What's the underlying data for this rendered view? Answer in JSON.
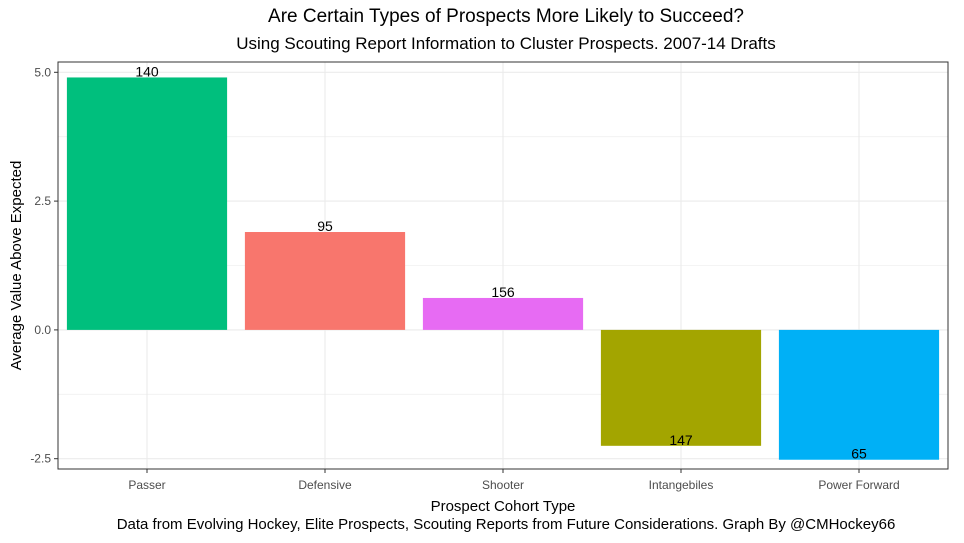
{
  "chart_data": {
    "type": "bar",
    "title": "Are Certain Types of Prospects More Likely to Succeed?",
    "subtitle": "Using Scouting Report Information to Cluster Prospects. 2007-14 Drafts",
    "caption": "Data from Evolving Hockey, Elite Prospects, Scouting Reports from Future Considerations. Graph By @CMHockey66",
    "xlabel": "Prospect Cohort Type",
    "ylabel": "Average Value Above Expected",
    "categories": [
      "Passer",
      "Defensive",
      "Shooter",
      "Intangebiles",
      "Power Forward"
    ],
    "values": [
      4.9,
      1.9,
      0.62,
      -2.25,
      -2.52
    ],
    "bar_labels": [
      "140",
      "95",
      "156",
      "147",
      "65"
    ],
    "colors": [
      "#00BF7D",
      "#F8766D",
      "#E76BF3",
      "#A3A500",
      "#00B0F6"
    ],
    "ylim": [
      -2.7,
      5.2
    ],
    "yticks": [
      -2.5,
      0.0,
      2.5,
      5.0
    ],
    "ytick_labels": [
      "-2.5",
      "0.0",
      "2.5",
      "5.0"
    ],
    "grid": true,
    "legend": "none"
  }
}
